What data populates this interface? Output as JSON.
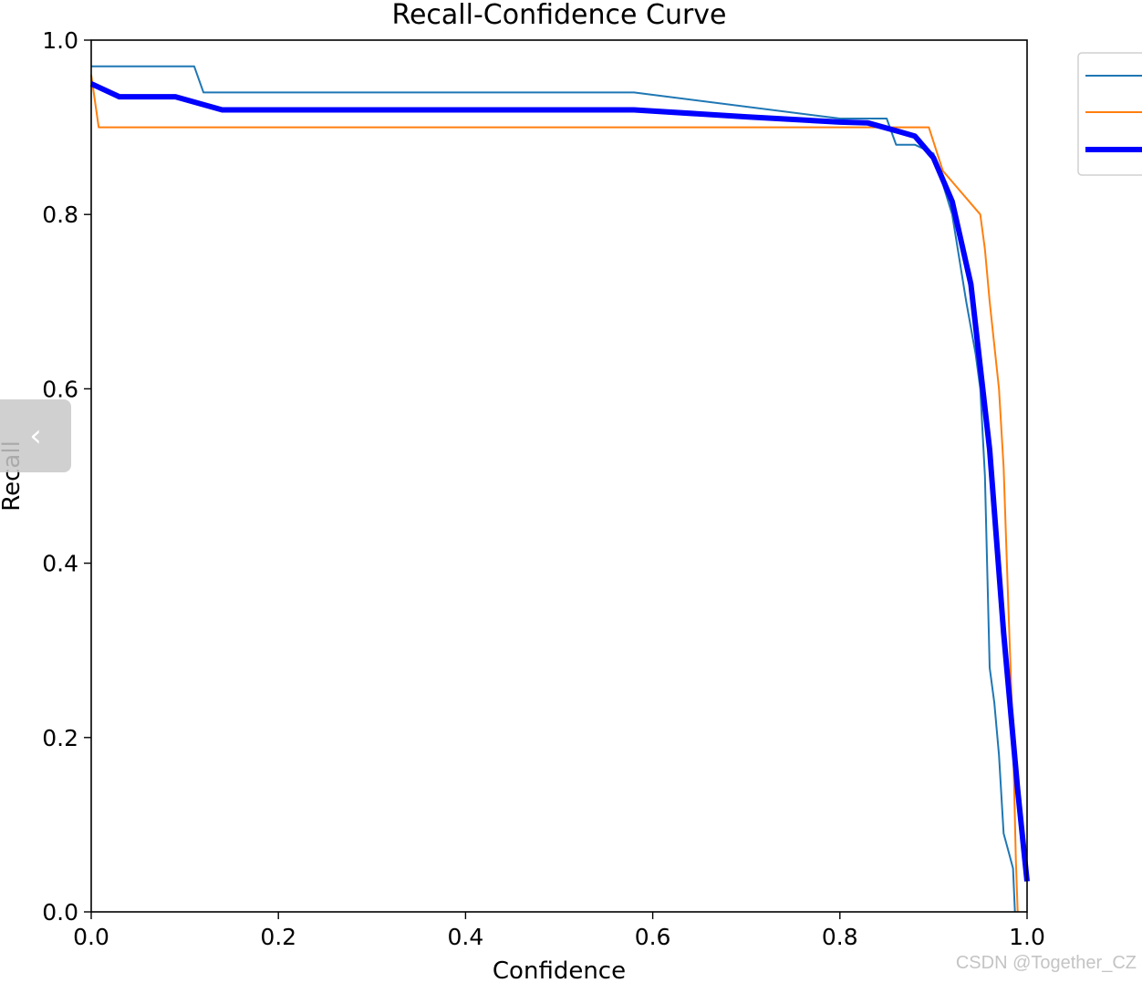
{
  "chart_data": {
    "type": "line",
    "title": "Recall-Confidence Curve",
    "xlabel": "Confidence",
    "ylabel": "Recall",
    "xlim": [
      0,
      1
    ],
    "ylim": [
      0,
      1
    ],
    "x_ticks": [
      "0.0",
      "0.2",
      "0.4",
      "0.6",
      "0.8",
      "1.0"
    ],
    "y_ticks": [
      "0.0",
      "0.2",
      "0.4",
      "0.6",
      "0.8",
      "1.0"
    ],
    "grid": false,
    "legend": "outside-top-right",
    "series": [
      {
        "color": "#1f77b4",
        "width": "thin",
        "x": [
          0.0,
          0.11,
          0.12,
          0.2,
          0.4,
          0.58,
          0.8,
          0.85,
          0.86,
          0.88,
          0.9,
          0.92,
          0.935,
          0.945,
          0.95,
          0.955,
          0.96,
          0.965,
          0.97,
          0.975,
          0.98,
          0.985,
          0.987
        ],
        "y": [
          0.97,
          0.97,
          0.94,
          0.94,
          0.94,
          0.94,
          0.91,
          0.91,
          0.88,
          0.88,
          0.87,
          0.8,
          0.7,
          0.64,
          0.6,
          0.5,
          0.28,
          0.24,
          0.18,
          0.09,
          0.07,
          0.05,
          0.0
        ]
      },
      {
        "color": "#ff7f0e",
        "width": "thin",
        "x": [
          0.0,
          0.008,
          0.2,
          0.4,
          0.6,
          0.8,
          0.895,
          0.91,
          0.95,
          0.955,
          0.96,
          0.97,
          0.975,
          0.98,
          0.985,
          0.988,
          0.99
        ],
        "y": [
          0.96,
          0.9,
          0.9,
          0.9,
          0.9,
          0.9,
          0.9,
          0.85,
          0.8,
          0.76,
          0.7,
          0.6,
          0.51,
          0.35,
          0.2,
          0.06,
          0.0
        ]
      },
      {
        "color": "#0000ff",
        "width": "thick",
        "x": [
          0.0,
          0.03,
          0.09,
          0.14,
          0.3,
          0.5,
          0.58,
          0.7,
          0.8,
          0.83,
          0.86,
          0.88,
          0.9,
          0.92,
          0.94,
          0.96,
          0.975,
          0.99,
          1.0
        ],
        "y": [
          0.95,
          0.935,
          0.935,
          0.92,
          0.92,
          0.92,
          0.92,
          0.912,
          0.906,
          0.905,
          0.896,
          0.89,
          0.865,
          0.815,
          0.72,
          0.53,
          0.32,
          0.14,
          0.035
        ]
      }
    ]
  },
  "navigation": {
    "prev_glyph": "‹"
  },
  "watermark": "CSDN @Together_CZ"
}
